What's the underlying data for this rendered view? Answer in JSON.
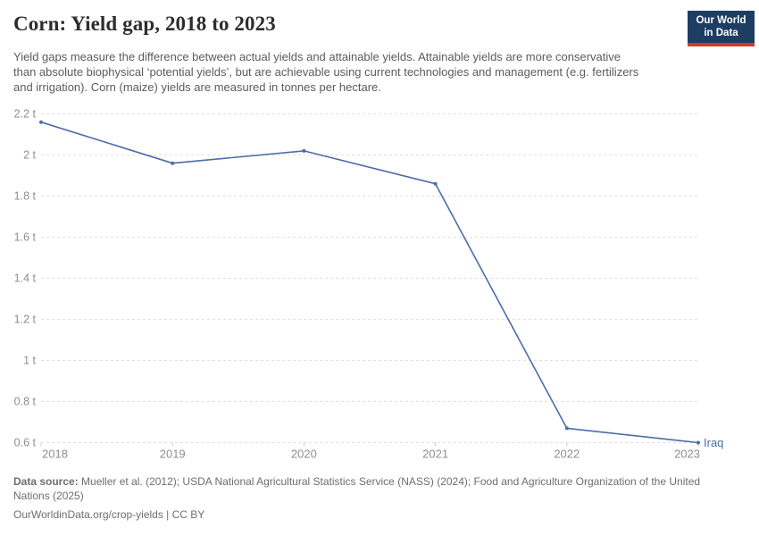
{
  "header": {
    "title": "Corn: Yield gap, 2018 to 2023",
    "subtitle": "Yield gaps measure the difference between actual yields and attainable yields. Attainable yields are more conservative than absolute biophysical ‘potential yields’, but are achievable using current technologies and management (e.g. fertilizers and irrigation). Corn (maize) yields are measured in tonnes per hectare.",
    "logo": {
      "line1": "Our World",
      "line2": "in Data",
      "bg_color": "#1d3d63",
      "bar_color": "#cf3a31"
    }
  },
  "chart_data": {
    "type": "line",
    "title": "Corn: Yield gap, 2018 to 2023",
    "xlabel": "",
    "ylabel": "",
    "unit": "tonnes per hectare",
    "x": [
      2018,
      2019,
      2020,
      2021,
      2022,
      2023
    ],
    "x_tick_labels": [
      "2018",
      "2019",
      "2020",
      "2021",
      "2022",
      "2023"
    ],
    "series": [
      {
        "name": "Iraq",
        "color": "#4c6ca8",
        "values": [
          2.16,
          1.96,
          2.02,
          1.86,
          0.67,
          0.6
        ]
      }
    ],
    "xlim": [
      2018,
      2023
    ],
    "ylim": [
      0.6,
      2.2
    ],
    "y_ticks": [
      0.6,
      0.8,
      1.0,
      1.2,
      1.4,
      1.6,
      1.8,
      2.0,
      2.2
    ],
    "y_tick_labels": [
      "0.6 t",
      "0.8 t",
      "1 t",
      "1.2 t",
      "1.4 t",
      "1.6 t",
      "1.8 t",
      "2 t",
      "2.2 t"
    ],
    "grid": "horizontal-dashed",
    "legend_position": "end-of-line-label",
    "end_label": "Iraq"
  },
  "footer": {
    "source_label": "Data source:",
    "source_text": "Mueller et al. (2012); USDA National Agricultural Statistics Service (NASS) (2024); Food and Agriculture Organization of the United Nations (2025)",
    "link_text": "OurWorldinData.org/crop-yields | CC BY"
  },
  "colors": {
    "line": "#4c6ca8",
    "grid": "#e0e0e0",
    "tick_mark": "#c9c9c9",
    "axis_label": "#8f8f8f",
    "title_text": "#2d2d2d",
    "subtitle_text": "#5b5b5b",
    "footer_text": "#6e6e6e",
    "background": "#ffffff"
  }
}
